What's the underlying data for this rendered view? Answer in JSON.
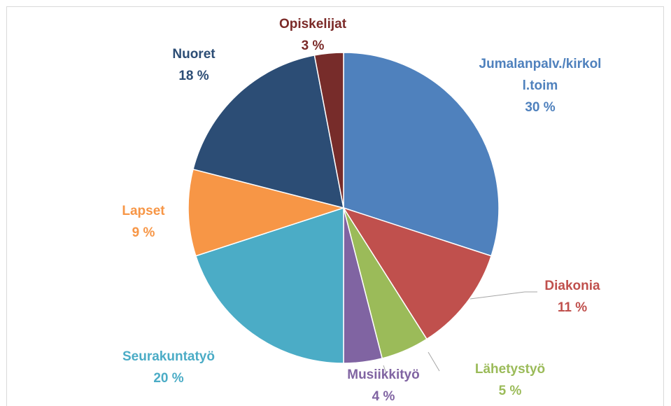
{
  "chart_data": {
    "type": "pie",
    "categories": [
      "Jumalanpalv./kirkoll.toim",
      "Diakonia",
      "Lähetystyö",
      "Musiikkityö",
      "Seurakuntatyö",
      "Lapset",
      "Nuoret",
      "Opiskelijat"
    ],
    "values": [
      30,
      11,
      5,
      4,
      20,
      9,
      18,
      3
    ],
    "value_labels": [
      "30 %",
      "11 %",
      "5 %",
      "4 %",
      "20 %",
      "9 %",
      "18 %",
      "3 %"
    ],
    "colors": [
      "#4f81bd",
      "#c0504d",
      "#9bbb59",
      "#8064a2",
      "#4bacc6",
      "#f79646",
      "#2c4d75",
      "#772c2a"
    ]
  }
}
